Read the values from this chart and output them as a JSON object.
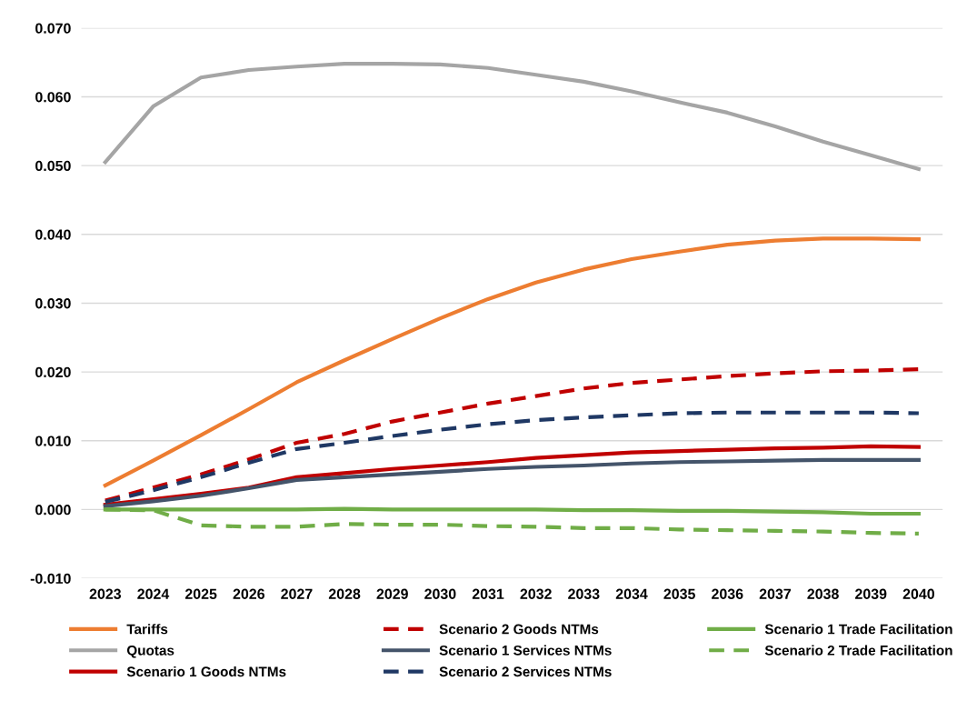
{
  "chart_data": {
    "type": "line",
    "categories": [
      "2023",
      "2024",
      "2025",
      "2026",
      "2027",
      "2028",
      "2029",
      "2030",
      "2031",
      "2032",
      "2033",
      "2034",
      "2035",
      "2036",
      "2037",
      "2038",
      "2039",
      "2040"
    ],
    "ylim": [
      -0.01,
      0.07
    ],
    "yticks": [
      {
        "value": -0.01,
        "label": "-0.010"
      },
      {
        "value": 0,
        "label": "0.000"
      },
      {
        "value": 0.01,
        "label": "0.010"
      },
      {
        "value": 0.02,
        "label": "0.020"
      },
      {
        "value": 0.03,
        "label": "0.030"
      },
      {
        "value": 0.04,
        "label": "0.040"
      },
      {
        "value": 0.05,
        "label": "0.050"
      },
      {
        "value": 0.06,
        "label": "0.060"
      },
      {
        "value": 0.07,
        "label": "0.070"
      }
    ],
    "grid": "y",
    "legend": "bottom",
    "marker": "none",
    "series": [
      {
        "name": "Tariffs",
        "color": "#ed7d31",
        "line_style": "solid",
        "values": [
          0.0035,
          0.0071,
          0.0108,
          0.0146,
          0.0185,
          0.0217,
          0.0248,
          0.0278,
          0.0306,
          0.033,
          0.0349,
          0.0364,
          0.0375,
          0.0385,
          0.0391,
          0.0394,
          0.0394,
          0.0393
        ]
      },
      {
        "name": "Quotas",
        "color": "#a5a5a5",
        "line_style": "solid",
        "values": [
          0.0505,
          0.0586,
          0.0628,
          0.0639,
          0.0644,
          0.0648,
          0.0648,
          0.0647,
          0.0642,
          0.0632,
          0.0622,
          0.0608,
          0.0592,
          0.0577,
          0.0557,
          0.0535,
          0.0515,
          0.0495
        ]
      },
      {
        "name": "Scenario 1 Goods NTMs",
        "color": "#c00000",
        "line_style": "solid",
        "values": [
          0.0007,
          0.0015,
          0.0023,
          0.0032,
          0.0047,
          0.0053,
          0.0059,
          0.0064,
          0.0069,
          0.0075,
          0.0079,
          0.0083,
          0.0085,
          0.0087,
          0.0089,
          0.009,
          0.0092,
          0.0091
        ]
      },
      {
        "name": "Scenario 2 Goods NTMs",
        "color": "#c00000",
        "line_style": "dashed",
        "values": [
          0.0013,
          0.0032,
          0.0051,
          0.0073,
          0.0097,
          0.011,
          0.0128,
          0.0141,
          0.0154,
          0.0165,
          0.0176,
          0.0184,
          0.0189,
          0.0194,
          0.0198,
          0.0201,
          0.0202,
          0.0204
        ]
      },
      {
        "name": "Scenario 1 Services NTMs",
        "color": "#44546a",
        "line_style": "solid",
        "values": [
          0.0005,
          0.0012,
          0.002,
          0.0031,
          0.0043,
          0.0047,
          0.0051,
          0.0055,
          0.0059,
          0.0062,
          0.0064,
          0.0067,
          0.0069,
          0.007,
          0.0071,
          0.0072,
          0.0072,
          0.0072
        ]
      },
      {
        "name": "Scenario 2 Services NTMs",
        "color": "#1f3864",
        "line_style": "dashed",
        "values": [
          0.0011,
          0.0028,
          0.0047,
          0.0068,
          0.0088,
          0.0097,
          0.0107,
          0.0116,
          0.0124,
          0.013,
          0.0134,
          0.0137,
          0.014,
          0.0141,
          0.0141,
          0.0141,
          0.0141,
          0.014
        ]
      },
      {
        "name": "Scenario 1 Trade Facilitation",
        "color": "#70ad47",
        "line_style": "solid",
        "values": [
          0.0,
          0.0,
          0.0,
          0.0,
          0.0,
          0.0001,
          0.0,
          0.0,
          0.0,
          0.0,
          -0.0001,
          -0.0001,
          -0.0002,
          -0.0002,
          -0.0003,
          -0.0004,
          -0.0006,
          -0.0006
        ]
      },
      {
        "name": "Scenario 2 Trade Facilitation",
        "color": "#70ad47",
        "line_style": "dashed",
        "values": [
          0.0,
          -0.0001,
          -0.0023,
          -0.0025,
          -0.0025,
          -0.0021,
          -0.0022,
          -0.0022,
          -0.0024,
          -0.0025,
          -0.0027,
          -0.0027,
          -0.0029,
          -0.003,
          -0.0031,
          -0.0032,
          -0.0034,
          -0.0035
        ]
      }
    ]
  }
}
